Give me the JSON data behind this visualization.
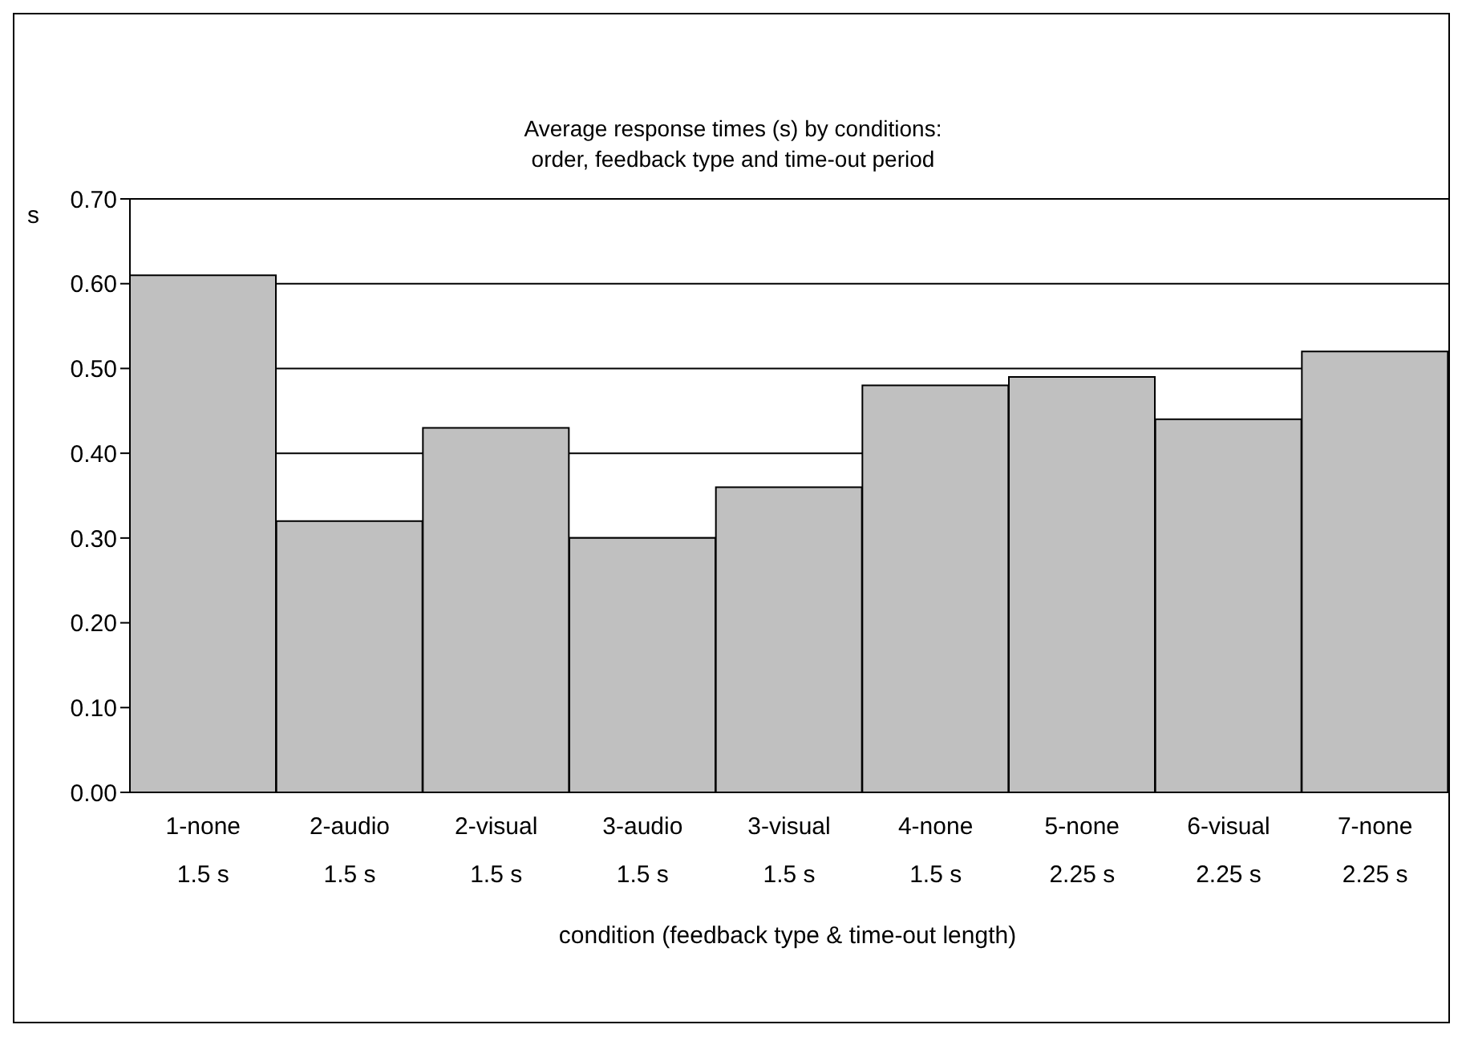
{
  "chart_data": {
    "type": "bar",
    "title": "Average response times (s) by conditions:\norder, feedback type and time-out period",
    "xlabel": "condition (feedback type & time-out length)",
    "ylabel": "s",
    "categories": [
      "1-none\n1.5 s",
      "2-audio\n1.5 s",
      "2-visual\n1.5 s",
      "3-audio\n1.5 s",
      "3-visual\n1.5 s",
      "4-none\n1.5 s",
      "5-none\n2.25 s",
      "6-visual\n2.25 s",
      "7-none\n2.25 s"
    ],
    "values": [
      0.61,
      0.32,
      0.43,
      0.3,
      0.36,
      0.48,
      0.49,
      0.44,
      0.52
    ],
    "color": "#c0c0c0",
    "ylim": [
      0,
      0.7
    ],
    "yticks": [
      {
        "value": 0,
        "label": "0.00"
      },
      {
        "value": 0.1,
        "label": "0.10"
      },
      {
        "value": 0.2,
        "label": "0.20"
      },
      {
        "value": 0.3,
        "label": "0.30"
      },
      {
        "value": 0.4,
        "label": "0.40"
      },
      {
        "value": 0.5,
        "label": "0.50"
      },
      {
        "value": 0.6,
        "label": "0.60"
      },
      {
        "value": 0.7,
        "label": "0.70"
      }
    ],
    "grid": "y",
    "legend": false
  }
}
